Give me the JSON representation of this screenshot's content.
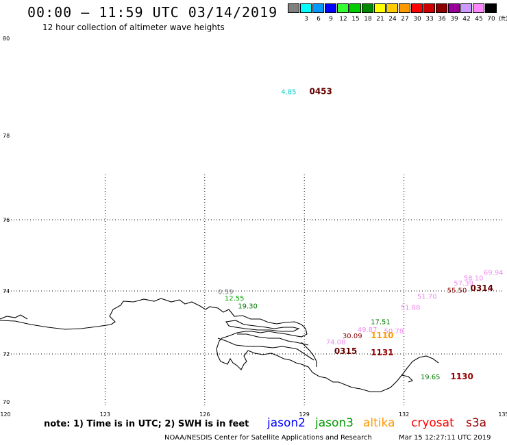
{
  "title": "00:00 – 11:59 UTC 03/14/2019",
  "subtitle": "12 hour collection of altimeter wave heights",
  "legend": {
    "unit": "(ft)",
    "colors": [
      "#808080",
      "#00ffff",
      "#0099ff",
      "#0000ff",
      "#33ff33",
      "#00cc00",
      "#008800",
      "#ffff00",
      "#ffcc00",
      "#ff9900",
      "#ff0000",
      "#cc0000",
      "#880000",
      "#990099",
      "#cc99ff",
      "#ff88ff",
      "#000000"
    ],
    "labels": [
      "",
      "3",
      "6",
      "9",
      "12",
      "15",
      "18",
      "21",
      "24",
      "27",
      "30",
      "33",
      "36",
      "39",
      "42",
      "45",
      "70"
    ]
  },
  "map": {
    "lat_labels": [
      "80",
      "78",
      "76",
      "74",
      "72",
      "70"
    ],
    "lon_labels": [
      "120",
      "123",
      "126",
      "129",
      "132",
      "135"
    ],
    "grid_lons": [
      123,
      126,
      129,
      132
    ],
    "grid_lats": [
      72,
      74,
      76
    ],
    "coast_color": "#000000"
  },
  "observations": [
    {
      "text": "4.85",
      "lon": 128.3,
      "lat": 78.85,
      "color": "#00cccc"
    },
    {
      "text": "0453",
      "lon": 129.15,
      "lat": 78.85,
      "color": "#660000",
      "time": true
    },
    {
      "text": "0.59",
      "lon": 126.4,
      "lat": 73.9,
      "color": "#808080"
    },
    {
      "text": "12.55",
      "lon": 126.6,
      "lat": 73.7,
      "color": "#00aa00"
    },
    {
      "text": "19.30",
      "lon": 127.0,
      "lat": 73.45,
      "color": "#007700"
    },
    {
      "text": "17.51",
      "lon": 131.0,
      "lat": 72.95,
      "color": "#007700"
    },
    {
      "text": "50.78",
      "lon": 131.4,
      "lat": 72.65,
      "color": "#ee88ee"
    },
    {
      "text": "51.88",
      "lon": 131.9,
      "lat": 73.4,
      "color": "#ee88ee"
    },
    {
      "text": "51.70",
      "lon": 132.4,
      "lat": 73.75,
      "color": "#ee88ee"
    },
    {
      "text": "49.87",
      "lon": 130.6,
      "lat": 72.7,
      "color": "#ee88ee"
    },
    {
      "text": "55.50",
      "lon": 133.3,
      "lat": 73.95,
      "color": "#880000"
    },
    {
      "text": "57.39",
      "lon": 133.5,
      "lat": 74.15,
      "color": "#ee88ee"
    },
    {
      "text": "58.10",
      "lon": 133.8,
      "lat": 74.3,
      "color": "#ee88ee"
    },
    {
      "text": "69.94",
      "lon": 134.4,
      "lat": 74.45,
      "color": "#ee88ee"
    },
    {
      "text": "0314",
      "lon": 134.0,
      "lat": 74.0,
      "color": "#660000",
      "time": true
    },
    {
      "text": "30.09",
      "lon": 130.15,
      "lat": 72.5,
      "color": "#880000"
    },
    {
      "text": "1110",
      "lon": 131.0,
      "lat": 72.5,
      "color": "#ff9900",
      "time": true
    },
    {
      "text": "74.08",
      "lon": 129.65,
      "lat": 72.3,
      "color": "#ee88ee"
    },
    {
      "text": "0315",
      "lon": 129.9,
      "lat": 72.0,
      "color": "#660000",
      "time": true
    },
    {
      "text": "1131",
      "lon": 131.0,
      "lat": 71.95,
      "color": "#990000",
      "time": true
    },
    {
      "text": "19.65",
      "lon": 132.5,
      "lat": 70.95,
      "color": "#007700"
    },
    {
      "text": "1130",
      "lon": 133.4,
      "lat": 70.95,
      "color": "#990000",
      "time": true
    }
  ],
  "note": "note:  1) Time is in UTC;  2) SWH is in feet",
  "satellites": [
    {
      "name": "jason2",
      "color": "#0000ff"
    },
    {
      "name": "jason3",
      "color": "#009900"
    },
    {
      "name": "altika",
      "color": "#ff9900"
    },
    {
      "name": "cryosat",
      "color": "#ff0000"
    },
    {
      "name": "s3a",
      "color": "#990000"
    }
  ],
  "credit": "NOAA/NESDIS Center for Satellite Applications and Research",
  "stamp": "Mar 15 12:27:11 UTC 2019"
}
